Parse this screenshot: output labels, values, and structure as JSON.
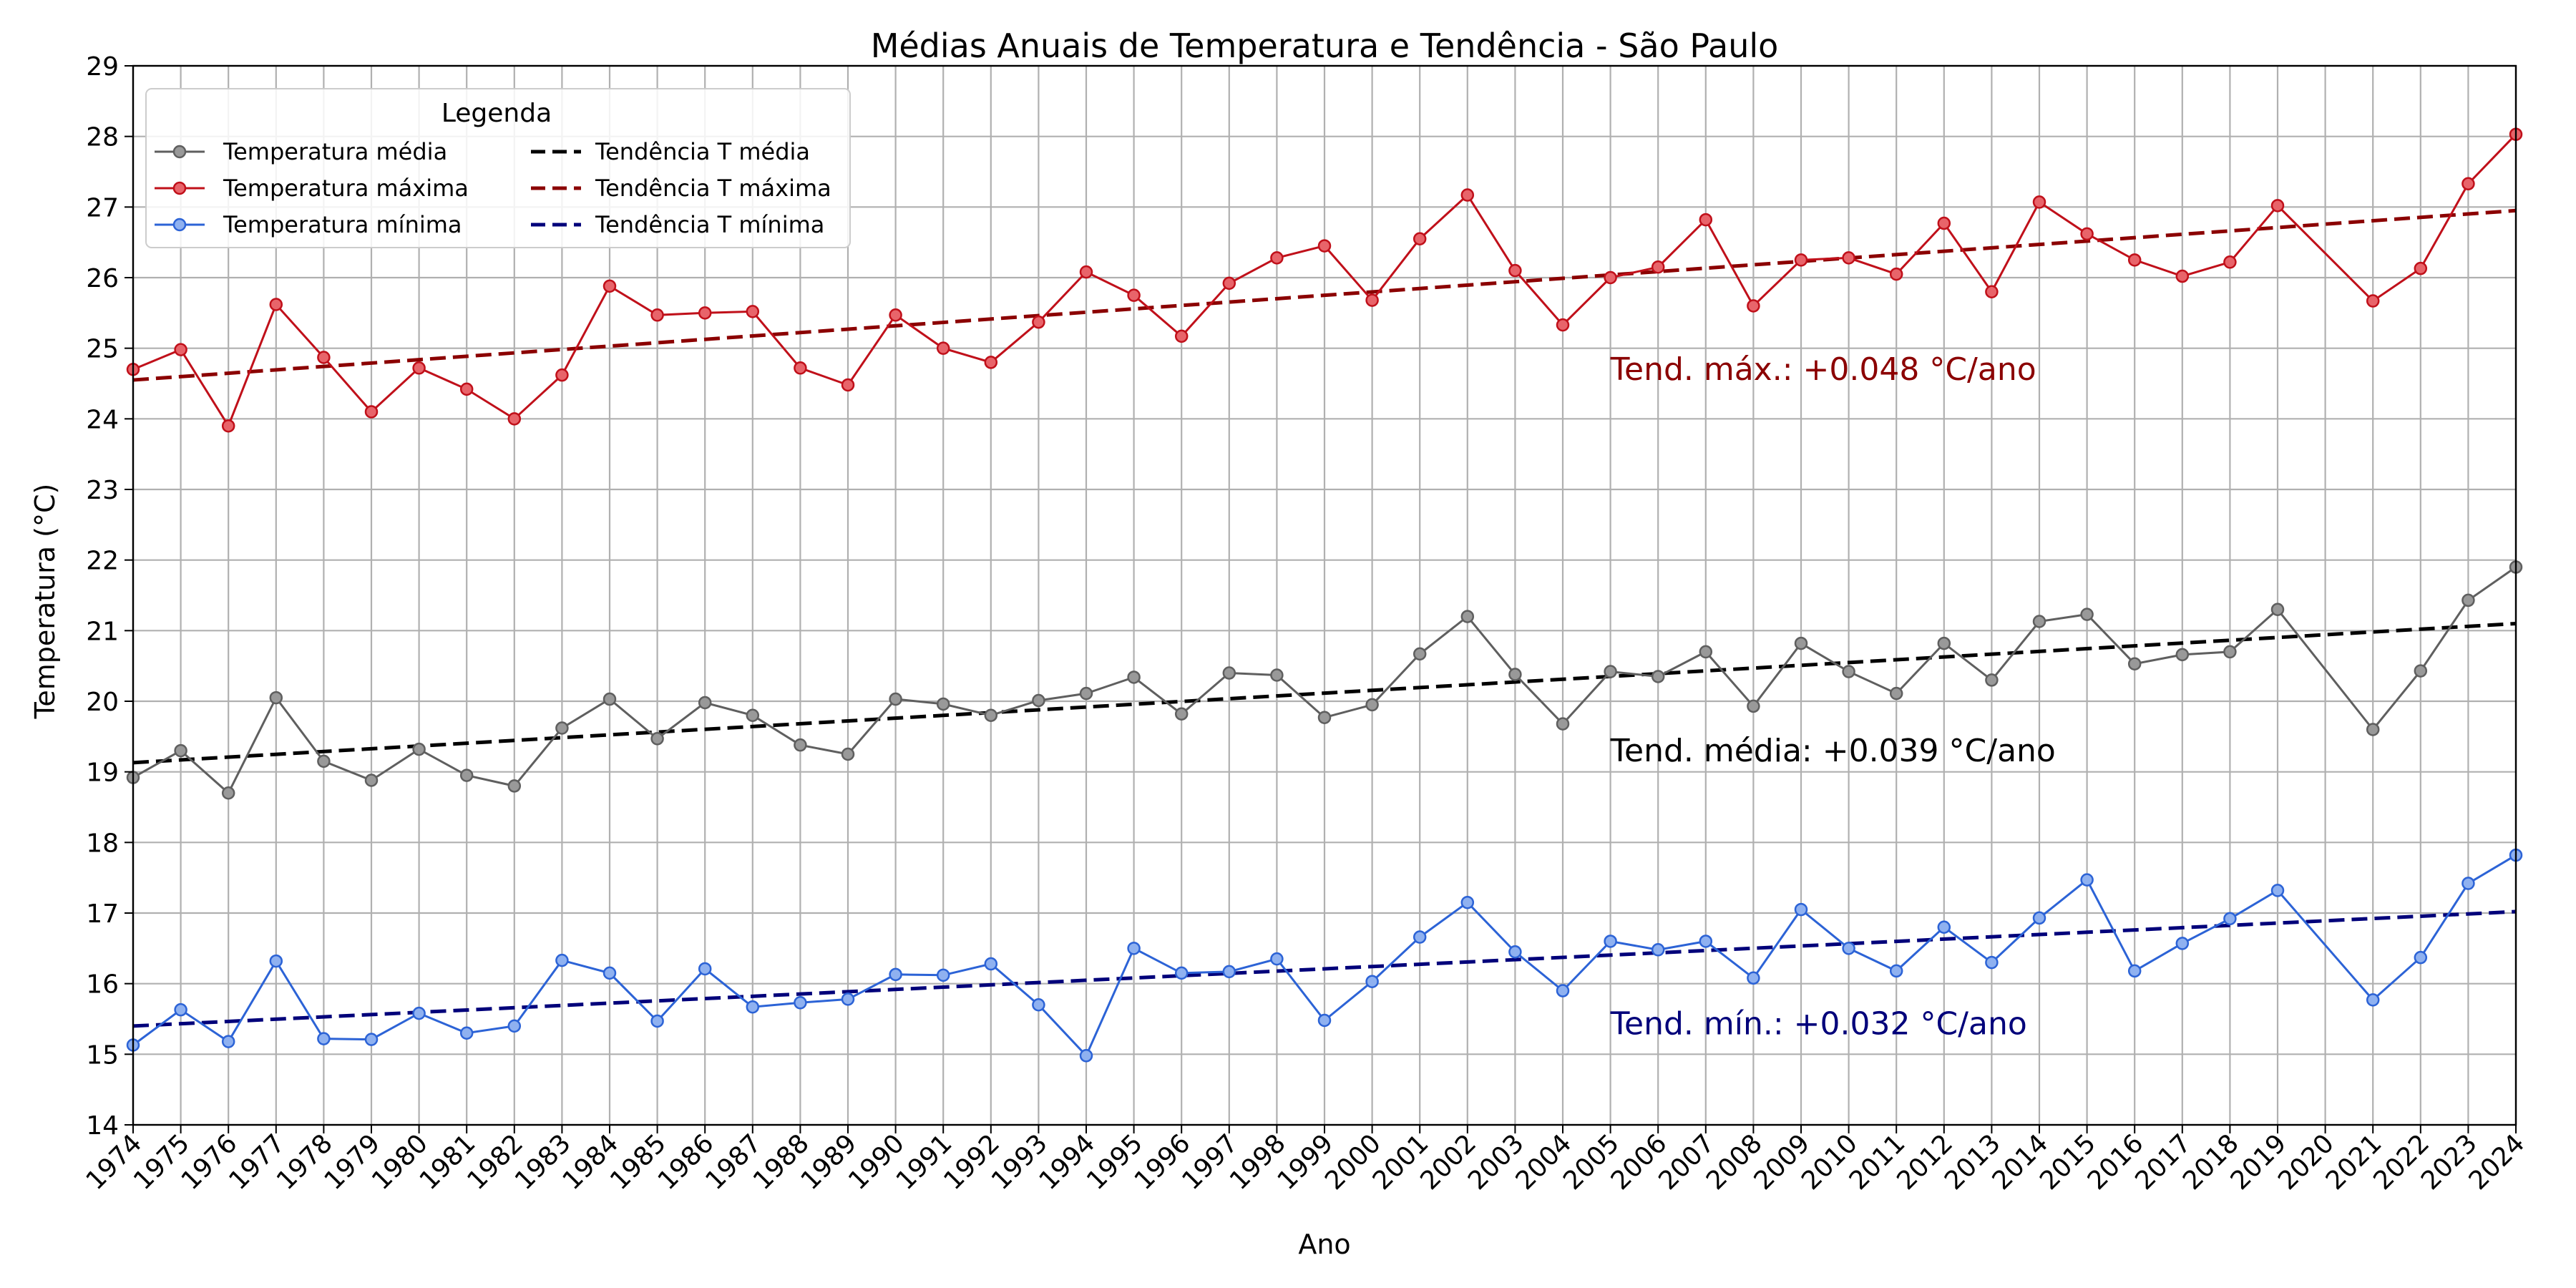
{
  "chart_data": {
    "type": "line",
    "title": "Médias Anuais de Temperatura e Tendência - São Paulo",
    "xlabel": "Ano",
    "ylabel": "Temperatura (°C)",
    "xlim": [
      1974,
      2024
    ],
    "ylim": [
      14,
      29
    ],
    "yticks": [
      14,
      15,
      16,
      17,
      18,
      19,
      20,
      21,
      22,
      23,
      24,
      25,
      26,
      27,
      28,
      29
    ],
    "grid": true,
    "legend": {
      "title": "Legenda",
      "placement": "top-left",
      "columns": 2
    },
    "x": [
      1974,
      1975,
      1976,
      1977,
      1978,
      1979,
      1980,
      1981,
      1982,
      1983,
      1984,
      1985,
      1986,
      1987,
      1988,
      1989,
      1990,
      1991,
      1992,
      1993,
      1994,
      1995,
      1996,
      1997,
      1998,
      1999,
      2000,
      2001,
      2002,
      2003,
      2004,
      2005,
      2006,
      2007,
      2008,
      2009,
      2010,
      2011,
      2012,
      2013,
      2014,
      2015,
      2016,
      2017,
      2018,
      2019,
      2021,
      2022,
      2023,
      2024
    ],
    "xticks": [
      1974,
      1975,
      1976,
      1977,
      1978,
      1979,
      1980,
      1981,
      1982,
      1983,
      1984,
      1985,
      1986,
      1987,
      1988,
      1989,
      1990,
      1991,
      1992,
      1993,
      1994,
      1995,
      1996,
      1997,
      1998,
      1999,
      2000,
      2001,
      2002,
      2003,
      2004,
      2005,
      2006,
      2007,
      2008,
      2009,
      2010,
      2011,
      2012,
      2013,
      2014,
      2015,
      2016,
      2017,
      2018,
      2019,
      2020,
      2021,
      2022,
      2023,
      2024
    ],
    "series": [
      {
        "name": "Temperatura média",
        "color": "#5f5f5f",
        "marker_fill": "#999999",
        "values": [
          18.92,
          19.3,
          18.7,
          20.05,
          19.15,
          18.88,
          19.32,
          18.95,
          18.8,
          19.62,
          20.03,
          19.47,
          19.98,
          19.8,
          19.38,
          19.25,
          20.03,
          19.96,
          19.8,
          20.01,
          20.11,
          20.34,
          19.82,
          20.4,
          20.37,
          19.77,
          19.95,
          20.67,
          21.2,
          20.38,
          19.68,
          20.42,
          20.35,
          20.7,
          19.93,
          20.82,
          20.42,
          20.11,
          20.82,
          20.3,
          21.13,
          21.23,
          20.53,
          20.66,
          20.7,
          21.3,
          19.6,
          20.43,
          21.43,
          21.9
        ]
      },
      {
        "name": "Temperatura máxima",
        "color": "#c0101a",
        "marker_fill": "#e8646a",
        "values": [
          24.7,
          24.98,
          23.9,
          25.62,
          24.87,
          24.1,
          24.72,
          24.42,
          24.0,
          24.62,
          25.88,
          25.47,
          25.5,
          25.52,
          24.72,
          24.48,
          25.47,
          25.0,
          24.8,
          25.37,
          26.08,
          25.75,
          25.17,
          25.92,
          26.28,
          26.45,
          25.68,
          26.55,
          27.17,
          26.1,
          25.33,
          26.0,
          26.15,
          26.82,
          25.6,
          26.25,
          26.28,
          26.05,
          26.77,
          25.8,
          27.07,
          26.62,
          26.25,
          26.02,
          26.22,
          27.02,
          25.67,
          26.13,
          27.33,
          28.03
        ]
      },
      {
        "name": "Temperatura mínima",
        "color": "#2c63d6",
        "marker_fill": "#8fb1f0",
        "values": [
          15.13,
          15.63,
          15.18,
          16.32,
          15.22,
          15.21,
          15.58,
          15.3,
          15.4,
          16.33,
          16.15,
          15.47,
          16.21,
          15.67,
          15.73,
          15.78,
          16.13,
          16.12,
          16.28,
          15.7,
          14.98,
          16.5,
          16.15,
          16.17,
          16.35,
          15.48,
          16.03,
          16.66,
          17.15,
          16.45,
          15.9,
          16.6,
          16.48,
          16.6,
          16.08,
          17.05,
          16.5,
          16.18,
          16.8,
          16.3,
          16.93,
          17.47,
          16.18,
          16.57,
          16.92,
          17.32,
          15.77,
          16.37,
          17.42,
          17.82
        ]
      }
    ],
    "trends": [
      {
        "name": "Tendência T média",
        "color": "#000000",
        "start": [
          1974,
          19.13
        ],
        "end": [
          2024,
          21.1
        ]
      },
      {
        "name": "Tendência T máxima",
        "color": "#8b0000",
        "start": [
          1974,
          24.55
        ],
        "end": [
          2024,
          26.95
        ]
      },
      {
        "name": "Tendência T mínima",
        "color": "#00007a",
        "start": [
          1974,
          15.4
        ],
        "end": [
          2024,
          17.02
        ]
      }
    ],
    "annotations": [
      {
        "text": "Tend. máx.: +0.048 °C/ano",
        "x": 2005,
        "y": 24.55,
        "color": "#8b0000"
      },
      {
        "text": "Tend. média: +0.039 °C/ano",
        "x": 2005,
        "y": 19.15,
        "color": "#000000"
      },
      {
        "text": "Tend. mín.: +0.032 °C/ano",
        "x": 2005,
        "y": 15.28,
        "color": "#00007a"
      }
    ]
  }
}
